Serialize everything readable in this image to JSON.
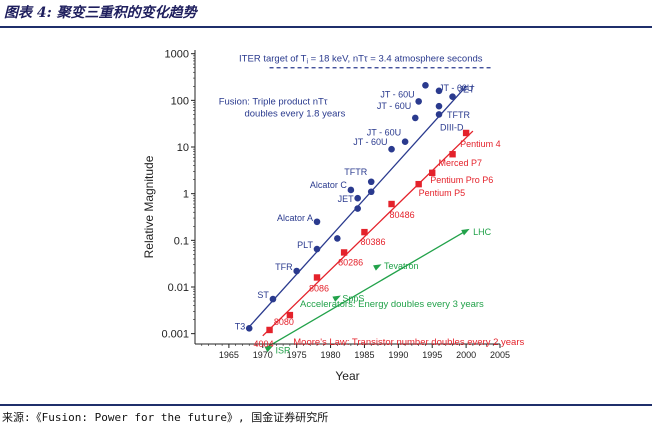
{
  "header": {
    "figure_title": "图表 4: 聚变三重积的变化趋势"
  },
  "footer": {
    "source": "来源:《Fusion: Power for the future》, 国金证券研究所"
  },
  "colors": {
    "fusion": "#2a3a8e",
    "moore": "#e4222b",
    "accelerator": "#22a24a",
    "axis": "#222222"
  },
  "chart_data": {
    "type": "scatter",
    "title": "",
    "xlabel": "Year",
    "ylabel": "Relative Magnitude",
    "x_scale": "linear",
    "y_scale": "log",
    "xlim": [
      1960,
      2005
    ],
    "ylim": [
      0.0006,
      1200
    ],
    "xticks": [
      "1965",
      "1970",
      "1975",
      "1980",
      "1985",
      "1990",
      "1995",
      "2000",
      "2005"
    ],
    "yticks": [
      {
        "value": 0.001,
        "label": "0.001"
      },
      {
        "value": 0.01,
        "label": "0.01"
      },
      {
        "value": 0.1,
        "label": "0.1"
      },
      {
        "value": 1,
        "label": "1"
      },
      {
        "value": 10,
        "label": "10"
      },
      {
        "value": 100,
        "label": "100"
      },
      {
        "value": 1000,
        "label": "1000"
      }
    ],
    "iter_target": {
      "value": 500,
      "x_range": [
        1971,
        2004
      ],
      "label": "ITER target of T",
      "label_sub": "i",
      "label_rest": " = 18 keV, nTτ = 3.4 atmosphere seconds"
    },
    "series": [
      {
        "name": "Fusion",
        "marker": "circle",
        "points": [
          {
            "x": 1968,
            "y": 0.0013,
            "label": "T3"
          },
          {
            "x": 1971.5,
            "y": 0.0055,
            "label": "ST"
          },
          {
            "x": 1975,
            "y": 0.022,
            "label": "TFR"
          },
          {
            "x": 1978,
            "y": 0.065,
            "label": "PLT"
          },
          {
            "x": 1978,
            "y": 0.25,
            "label": "Alcator A"
          },
          {
            "x": 1981,
            "y": 0.11,
            "label": ""
          },
          {
            "x": 1983,
            "y": 1.2,
            "label": "Alcator C"
          },
          {
            "x": 1984,
            "y": 0.8,
            "label": "JET"
          },
          {
            "x": 1984,
            "y": 0.48,
            "label": ""
          },
          {
            "x": 1986,
            "y": 1.8,
            "label": "TFTR"
          },
          {
            "x": 1986,
            "y": 1.1,
            "label": ""
          },
          {
            "x": 1989,
            "y": 9,
            "label": "JT - 60U"
          },
          {
            "x": 1991,
            "y": 13,
            "label": "JT - 60U"
          },
          {
            "x": 1992.5,
            "y": 42,
            "label": "JT - 60U"
          },
          {
            "x": 1993,
            "y": 95,
            "label": "JT - 60U"
          },
          {
            "x": 1994,
            "y": 210,
            "label": ""
          },
          {
            "x": 1996,
            "y": 160,
            "label": "JT - 60U"
          },
          {
            "x": 1996,
            "y": 75,
            "label": "TFTR"
          },
          {
            "x": 1996,
            "y": 50,
            "label": "DIII-D"
          },
          {
            "x": 1998,
            "y": 120,
            "label": "JET"
          }
        ],
        "trend": {
          "x": [
            1968,
            2000
          ],
          "y": [
            0.0014,
            200
          ]
        },
        "annotation": [
          "Fusion: Triple product nTτ",
          "doubles every 1.8 years"
        ]
      },
      {
        "name": "Moore's Law",
        "marker": "square",
        "points": [
          {
            "x": 1971,
            "y": 0.0012,
            "label": "4004"
          },
          {
            "x": 1974,
            "y": 0.0025,
            "label": "8080"
          },
          {
            "x": 1978,
            "y": 0.016,
            "label": "8086"
          },
          {
            "x": 1982,
            "y": 0.055,
            "label": "80286"
          },
          {
            "x": 1985,
            "y": 0.15,
            "label": "80386"
          },
          {
            "x": 1989,
            "y": 0.6,
            "label": "80486"
          },
          {
            "x": 1993,
            "y": 1.6,
            "label": "Pentium P5"
          },
          {
            "x": 1995,
            "y": 2.8,
            "label": "Pentium Pro P6"
          },
          {
            "x": 1998,
            "y": 7,
            "label": "Merced P7"
          },
          {
            "x": 2000,
            "y": 20,
            "label": "Pentium 4"
          }
        ],
        "trend": {
          "x": [
            1970,
            2001
          ],
          "y": [
            0.0009,
            22
          ]
        },
        "annotation": [
          "Moore's Law: Transistor number doubles every 2 years"
        ]
      },
      {
        "name": "Accelerators",
        "marker": "triangle",
        "points": [
          {
            "x": 1971,
            "y": 0.0005,
            "label": "ISR"
          },
          {
            "x": 1981,
            "y": 0.006,
            "label": "SppS"
          },
          {
            "x": 1987,
            "y": 0.028,
            "label": "Tevatron"
          },
          {
            "x": 2000,
            "y": 0.16,
            "label": "LHC"
          }
        ],
        "trend": {
          "x": [
            1970.5,
            2000
          ],
          "y": [
            0.0005,
            0.16
          ]
        },
        "annotation": [
          "Accelerators: Energy doubles every 3 years"
        ]
      }
    ]
  }
}
